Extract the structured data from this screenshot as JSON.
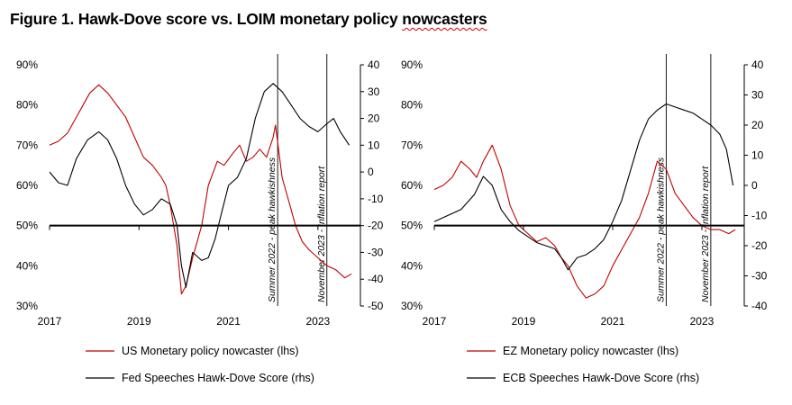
{
  "figure": {
    "title_main": "Figure 1. Hawk-Dove score vs. LOIM monetary policy ",
    "title_squiggle": "nowcasters"
  },
  "colors": {
    "nowcaster": "#c00000",
    "speeches": "#000000",
    "baseline": "#000000"
  },
  "chart_data": [
    {
      "type": "line",
      "panel": "US",
      "x_range": [
        2017.0,
        2023.95
      ],
      "x_ticks": [
        2017,
        2019,
        2021,
        2023
      ],
      "x_tick_labels": [
        "2017",
        "2019",
        "2021",
        "2023"
      ],
      "y_left": {
        "range": [
          0.3,
          0.9
        ],
        "ticks": [
          0.3,
          0.4,
          0.5,
          0.6,
          0.7,
          0.8,
          0.9
        ],
        "tick_labels": [
          "30%",
          "40%",
          "50%",
          "60%",
          "70%",
          "80%",
          "90%"
        ]
      },
      "y_right": {
        "range": [
          -50,
          40
        ],
        "ticks": [
          -50,
          -40,
          -30,
          -20,
          -10,
          0,
          10,
          20,
          30,
          40
        ],
        "tick_labels": [
          "-50",
          "-40",
          "-30",
          "-20",
          "-10",
          "0",
          "10",
          "20",
          "30",
          "40"
        ]
      },
      "baseline_lhs": 0.5,
      "annotations": [
        {
          "x": 2022.1,
          "label": "Summer 2022 - peak hawkishness"
        },
        {
          "x": 2023.2,
          "label": "November 2023 - Inflation report"
        }
      ],
      "legend": [
        "US Monetary policy nowcaster (lhs)",
        "Fed Speeches Hawk-Dove Score (rhs)"
      ],
      "series": [
        {
          "name": "US Monetary policy nowcaster (lhs)",
          "axis": "left",
          "color": "#c00000",
          "x": [
            2017.0,
            2017.2,
            2017.4,
            2017.6,
            2017.75,
            2017.9,
            2018.1,
            2018.3,
            2018.5,
            2018.7,
            2018.9,
            2019.1,
            2019.3,
            2019.5,
            2019.6,
            2019.7,
            2019.85,
            2019.95,
            2020.05,
            2020.2,
            2020.4,
            2020.55,
            2020.75,
            2020.9,
            2021.1,
            2021.25,
            2021.4,
            2021.55,
            2021.7,
            2021.85,
            2022.0,
            2022.05,
            2022.2,
            2022.35,
            2022.5,
            2022.65,
            2022.8,
            2023.0,
            2023.2,
            2023.4,
            2023.6,
            2023.75
          ],
          "y": [
            0.7,
            0.71,
            0.73,
            0.77,
            0.8,
            0.83,
            0.85,
            0.83,
            0.8,
            0.77,
            0.72,
            0.67,
            0.65,
            0.62,
            0.6,
            0.55,
            0.45,
            0.33,
            0.35,
            0.42,
            0.5,
            0.6,
            0.66,
            0.65,
            0.68,
            0.7,
            0.66,
            0.67,
            0.69,
            0.67,
            0.72,
            0.75,
            0.62,
            0.56,
            0.5,
            0.46,
            0.44,
            0.42,
            0.4,
            0.39,
            0.37,
            0.38
          ]
        },
        {
          "name": "Fed Speeches Hawk-Dove Score (rhs)",
          "axis": "right",
          "color": "#000000",
          "x": [
            2017.0,
            2017.2,
            2017.4,
            2017.6,
            2017.85,
            2018.1,
            2018.3,
            2018.5,
            2018.7,
            2018.9,
            2019.1,
            2019.3,
            2019.5,
            2019.7,
            2019.85,
            2019.95,
            2020.05,
            2020.2,
            2020.4,
            2020.55,
            2020.7,
            2020.85,
            2021.0,
            2021.2,
            2021.4,
            2021.6,
            2021.8,
            2022.0,
            2022.2,
            2022.4,
            2022.6,
            2022.8,
            2023.0,
            2023.2,
            2023.35,
            2023.5,
            2023.7
          ],
          "y": [
            0,
            -4,
            -5,
            5,
            12,
            15,
            12,
            5,
            -5,
            -12,
            -16,
            -14,
            -10,
            -12,
            -20,
            -35,
            -43,
            -30,
            -33,
            -32,
            -25,
            -15,
            -5,
            -2,
            5,
            20,
            30,
            33,
            30,
            25,
            20,
            17,
            15,
            18,
            20,
            15,
            10
          ]
        }
      ]
    },
    {
      "type": "line",
      "panel": "EZ",
      "x_range": [
        2017.0,
        2023.95
      ],
      "x_ticks": [
        2017,
        2019,
        2021,
        2023
      ],
      "x_tick_labels": [
        "2017",
        "2019",
        "2021",
        "2023"
      ],
      "y_left": {
        "range": [
          0.3,
          0.9
        ],
        "ticks": [
          0.3,
          0.4,
          0.5,
          0.6,
          0.7,
          0.8,
          0.9
        ],
        "tick_labels": [
          "30%",
          "40%",
          "50%",
          "60%",
          "70%",
          "80%",
          "90%"
        ]
      },
      "y_right": {
        "range": [
          -40,
          40
        ],
        "ticks": [
          -40,
          -30,
          -20,
          -10,
          0,
          10,
          20,
          30,
          40
        ],
        "tick_labels": [
          "-40",
          "-30",
          "-20",
          "-10",
          "0",
          "10",
          "20",
          "30",
          "40"
        ]
      },
      "baseline_lhs": 0.5,
      "annotations": [
        {
          "x": 2022.2,
          "label": "Summer 2022 - peak hawkishness"
        },
        {
          "x": 2023.2,
          "label": "November 2023 - Inflation report"
        }
      ],
      "legend": [
        "EZ Monetary policy nowcaster (lhs)",
        "ECB Speeches Hawk-Dove Score (rhs)"
      ],
      "series": [
        {
          "name": "EZ Monetary policy nowcaster (lhs)",
          "axis": "left",
          "color": "#c00000",
          "x": [
            2017.0,
            2017.2,
            2017.4,
            2017.6,
            2017.8,
            2017.95,
            2018.1,
            2018.3,
            2018.5,
            2018.7,
            2018.9,
            2019.1,
            2019.3,
            2019.5,
            2019.7,
            2019.85,
            2020.0,
            2020.2,
            2020.4,
            2020.6,
            2020.8,
            2021.0,
            2021.2,
            2021.4,
            2021.6,
            2021.8,
            2022.0,
            2022.2,
            2022.4,
            2022.6,
            2022.8,
            2023.0,
            2023.2,
            2023.4,
            2023.6,
            2023.75
          ],
          "y": [
            0.59,
            0.6,
            0.62,
            0.66,
            0.64,
            0.62,
            0.66,
            0.7,
            0.64,
            0.55,
            0.5,
            0.48,
            0.46,
            0.47,
            0.45,
            0.42,
            0.4,
            0.35,
            0.32,
            0.33,
            0.35,
            0.4,
            0.44,
            0.48,
            0.52,
            0.58,
            0.66,
            0.64,
            0.58,
            0.55,
            0.52,
            0.5,
            0.49,
            0.49,
            0.48,
            0.49
          ]
        },
        {
          "name": "ECB Speeches Hawk-Dove Score (rhs)",
          "axis": "right",
          "color": "#000000",
          "x": [
            2017.0,
            2017.3,
            2017.6,
            2017.9,
            2018.1,
            2018.3,
            2018.5,
            2018.7,
            2018.9,
            2019.1,
            2019.3,
            2019.5,
            2019.7,
            2019.85,
            2020.0,
            2020.2,
            2020.4,
            2020.6,
            2020.8,
            2021.0,
            2021.2,
            2021.4,
            2021.6,
            2021.8,
            2022.0,
            2022.2,
            2022.4,
            2022.6,
            2022.8,
            2023.0,
            2023.2,
            2023.4,
            2023.55,
            2023.7
          ],
          "y": [
            -12,
            -10,
            -8,
            -3,
            3,
            0,
            -8,
            -12,
            -15,
            -17,
            -19,
            -20,
            -21,
            -24,
            -28,
            -24,
            -23,
            -21,
            -18,
            -12,
            -5,
            5,
            15,
            22,
            25,
            27,
            26,
            25,
            24,
            22,
            20,
            17,
            12,
            0
          ]
        }
      ]
    }
  ]
}
